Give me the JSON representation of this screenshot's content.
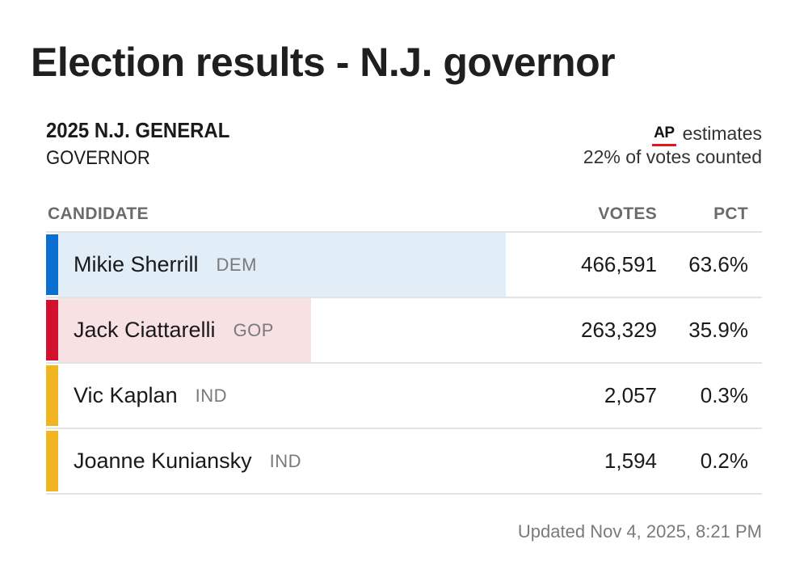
{
  "page": {
    "title": "Election results - N.J. governor"
  },
  "race": {
    "name": "2025 N.J. GENERAL",
    "office": "GOVERNOR",
    "source_logo": "AP",
    "source_note": "estimates",
    "counted": "22% of votes counted"
  },
  "table": {
    "headers": {
      "candidate": "CANDIDATE",
      "votes": "VOTES",
      "pct": "PCT"
    },
    "rows": [
      {
        "name": "Mikie Sherrill",
        "party": "DEM",
        "votes": "466,591",
        "pct": "63.6%",
        "share": 0.636,
        "stripe_color": "#0a6fd1",
        "fill_color": "#e1eef7"
      },
      {
        "name": "Jack Ciattarelli",
        "party": "GOP",
        "votes": "263,329",
        "pct": "35.9%",
        "share": 0.359,
        "stripe_color": "#d3102d",
        "fill_color": "#f7e1e3"
      },
      {
        "name": "Vic Kaplan",
        "party": "IND",
        "votes": "2,057",
        "pct": "0.3%",
        "share": 0.003,
        "stripe_color": "#f1b521",
        "fill_color": "#ffffff"
      },
      {
        "name": "Joanne Kuniansky",
        "party": "IND",
        "votes": "1,594",
        "pct": "0.2%",
        "share": 0.002,
        "stripe_color": "#f1b521",
        "fill_color": "#ffffff"
      }
    ]
  },
  "footer": {
    "updated": "Updated Nov 4, 2025, 8:21 PM"
  }
}
